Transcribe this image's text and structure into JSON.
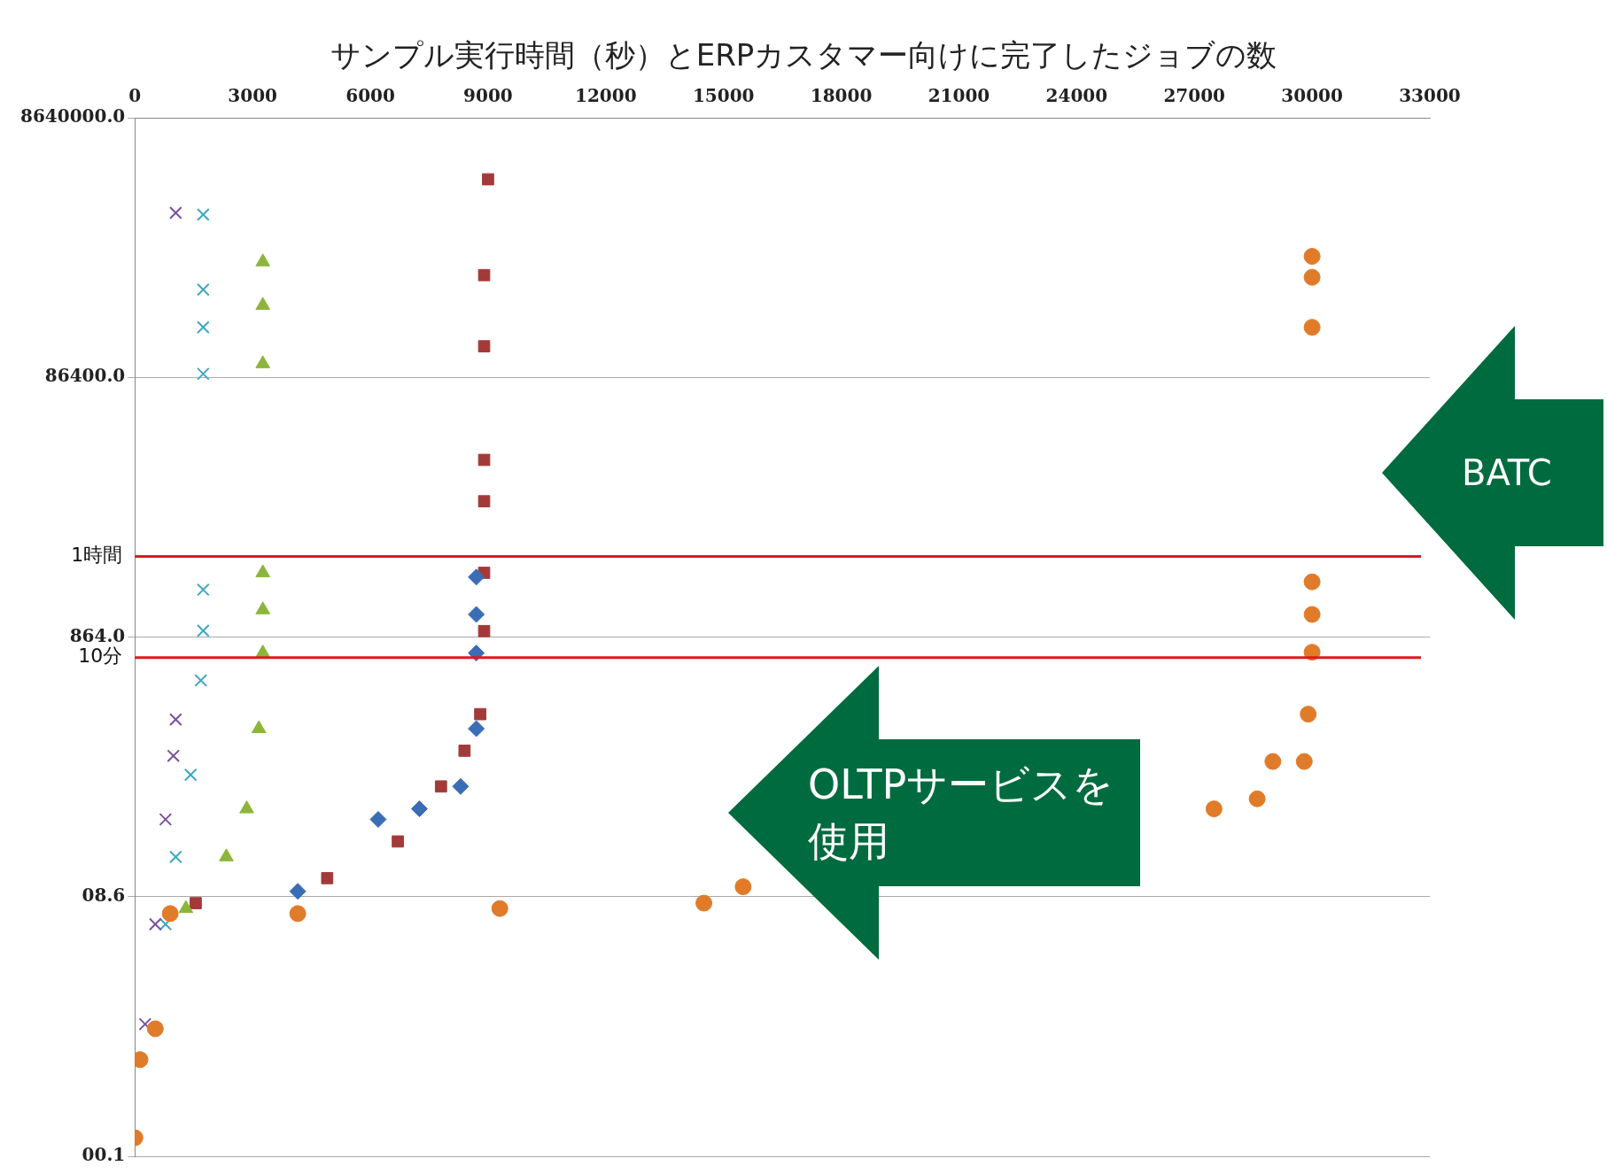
{
  "chart_data": {
    "type": "scatter",
    "title": "サンプル実行時間（秒）とERPカスタマー向けに完了したジョブの数",
    "log": "y",
    "grid": "y",
    "legend": false,
    "xlim": [
      0,
      33000
    ],
    "xticks": [
      0,
      3000,
      6000,
      9000,
      12000,
      15000,
      18000,
      21000,
      24000,
      27000,
      30000,
      33000
    ],
    "ylim": [
      0.0864,
      8640000
    ],
    "yticks": [
      {
        "value": 0.0864,
        "label": "00.1"
      },
      {
        "value": 8.64,
        "label": "08.6"
      },
      {
        "value": 864,
        "label": "864.0"
      },
      {
        "value": 86400,
        "label": "86400.0"
      },
      {
        "value": 8640000,
        "label": "8640000.0"
      }
    ],
    "ref_lines": [
      {
        "axis": "y",
        "value": 3600,
        "label": "1時間",
        "color": "#e0191e"
      },
      {
        "axis": "y",
        "value": 600,
        "label": "10分",
        "color": "#e0191e"
      }
    ],
    "annotations": [
      "OLTPサービスを使用",
      "BATC"
    ],
    "series": [
      {
        "color": "#e07b2a",
        "marker": "circle",
        "x": [
          0,
          130,
          520,
          900,
          4150,
          9300,
          14500,
          15500,
          22300,
          24900,
          25400,
          27500,
          28600,
          29000,
          29800,
          29900,
          30000,
          30000,
          30000,
          30000,
          30000,
          30000
        ],
        "values": [
          0.12,
          0.48,
          0.83,
          6.4,
          6.4,
          7,
          7.7,
          10.3,
          null,
          null,
          null,
          41,
          49,
          95,
          95,
          220,
          660,
          1290,
          2300,
          210000,
          510000,
          740000
        ]
      },
      {
        "color": "#7b4f9d",
        "marker": "cross",
        "x": [
          260,
          520,
          780,
          980,
          1040,
          1040
        ],
        "values": [
          0.9,
          5.3,
          34,
          105,
          200,
          1600000
        ]
      },
      {
        "color": "#3fa7c4",
        "marker": "cross",
        "x": [
          780,
          1040,
          1420,
          1680,
          1740,
          1740,
          1740,
          1740,
          1740,
          1740
        ],
        "values": [
          5.3,
          17.5,
          75,
          400,
          966,
          2000,
          92000,
          210000,
          410000,
          1550000
        ]
      },
      {
        "color": "#8db53c",
        "marker": "triangle",
        "x": [
          1300,
          2330,
          2850,
          3160,
          3260,
          3260,
          3260,
          3260,
          3260,
          3260
        ],
        "values": [
          7,
          17.5,
          41,
          170,
          650,
          1400,
          2700,
          110000,
          310000,
          670000
        ]
      },
      {
        "color": "#3a6db5",
        "marker": "diamond",
        "x": [
          4150,
          6200,
          7250,
          8300,
          8700,
          8700,
          8700,
          8700
        ],
        "values": [
          9.5,
          34,
          41,
          61,
          170,
          650,
          1290,
          2500
        ]
      },
      {
        "color": "#a33a3a",
        "marker": "square",
        "x": [
          1550,
          4900,
          6700,
          7800,
          8400,
          8800,
          8900,
          8900,
          8900,
          8900,
          8900,
          8900,
          9000
        ],
        "values": [
          7.7,
          12,
          23,
          61,
          115,
          220,
          960,
          2700,
          9600,
          20000,
          150000,
          530000,
          2900000
        ]
      }
    ]
  }
}
